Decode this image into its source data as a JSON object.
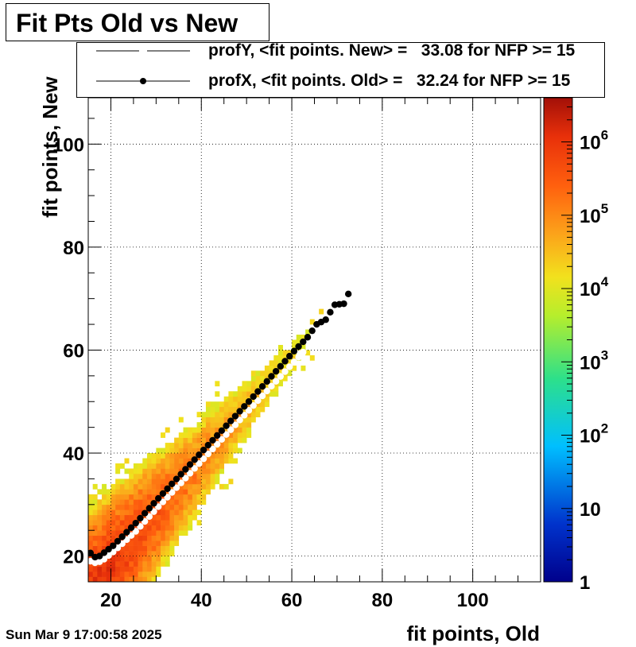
{
  "title": "Fit Pts Old vs New",
  "date_stamp": "Sun Mar  9 17:00:58 2025",
  "legend": [
    {
      "label": "profY, <fit points. New> =   33.08 for NFP >= 15",
      "marker": "white-circle",
      "color": "#ffffff"
    },
    {
      "label": "profX, <fit points. Old> =   32.24 for NFP >= 15",
      "marker": "black-circle",
      "color": "#000000"
    }
  ],
  "chart_data": {
    "type": "heatmap",
    "title": "Fit Pts Old vs New",
    "xlabel": "fit points, Old",
    "ylabel": "fit points, New",
    "xlim": [
      15,
      115
    ],
    "ylim": [
      15,
      109
    ],
    "x_ticks": [
      20,
      40,
      60,
      80,
      100
    ],
    "y_ticks": [
      20,
      40,
      60,
      80,
      100
    ],
    "grid": true,
    "z_scale": "log",
    "zlim": [
      1,
      4000000
    ],
    "colorbar_ticks": [
      "1",
      "10",
      "10^2",
      "10^3",
      "10^4",
      "10^5",
      "10^6"
    ],
    "colormap": "rainbow (dark blue → cyan → green → yellow → orange → dark red)",
    "series": [
      {
        "name": "profY, <fit points. New> =   33.08 for NFP >= 15",
        "color": "#ffffff",
        "x_from": 15,
        "x_to": 62,
        "points": [
          [
            15,
            19
          ],
          [
            16,
            18.7
          ],
          [
            17,
            18.9
          ],
          [
            18,
            19.4
          ],
          [
            20,
            20.8
          ],
          [
            25,
            24.8
          ],
          [
            30,
            29.6
          ],
          [
            35,
            34.2
          ],
          [
            40,
            38.9
          ],
          [
            45,
            43.6
          ],
          [
            50,
            48.3
          ],
          [
            55,
            53
          ],
          [
            60,
            57.7
          ],
          [
            62,
            59.6
          ]
        ]
      },
      {
        "name": "profX, <fit points. Old> =   32.24 for NFP >= 15",
        "color": "#000000",
        "x_from": 15,
        "x_to": 72,
        "points": [
          [
            15,
            20.6
          ],
          [
            16,
            19.8
          ],
          [
            17,
            20
          ],
          [
            20,
            22
          ],
          [
            25,
            26.4
          ],
          [
            30,
            31.2
          ],
          [
            35,
            35.9
          ],
          [
            40,
            40.6
          ],
          [
            45,
            45.3
          ],
          [
            50,
            50
          ],
          [
            55,
            54.9
          ],
          [
            60,
            59.8
          ],
          [
            63,
            62.5
          ],
          [
            65,
            65
          ],
          [
            67,
            65.9
          ],
          [
            69,
            68.8
          ],
          [
            71,
            69
          ],
          [
            72,
            70.9
          ]
        ]
      }
    ]
  }
}
